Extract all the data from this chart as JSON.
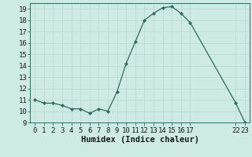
{
  "x": [
    0,
    1,
    2,
    3,
    4,
    5,
    6,
    7,
    8,
    9,
    10,
    11,
    12,
    13,
    14,
    15,
    16,
    17,
    22,
    23
  ],
  "y": [
    11.0,
    10.7,
    10.7,
    10.5,
    10.2,
    10.2,
    9.8,
    10.2,
    10.0,
    11.7,
    14.2,
    16.1,
    18.0,
    18.6,
    19.1,
    19.2,
    18.6,
    17.8,
    10.7,
    9.0
  ],
  "ylim": [
    9,
    19.5
  ],
  "xlim": [
    -0.5,
    23.5
  ],
  "yticks": [
    9,
    10,
    11,
    12,
    13,
    14,
    15,
    16,
    17,
    18,
    19
  ],
  "xticks_pos": [
    0,
    1,
    2,
    3,
    4,
    5,
    6,
    7,
    8,
    9,
    10,
    11,
    12,
    13,
    14,
    15,
    16,
    17,
    22,
    23
  ],
  "xtick_labels": [
    "0",
    "1",
    "2",
    "3",
    "4",
    "5",
    "6",
    "7",
    "8",
    "9",
    "10",
    "11",
    "12",
    "13",
    "14",
    "15",
    "16",
    "17",
    "22",
    "23"
  ],
  "xlabel": "Humidex (Indice chaleur)",
  "line_color": "#2e6b5e",
  "marker_color": "#2e6b5e",
  "bg_color": "#cdeae4",
  "grid_color_major": "#b8d8d0",
  "grid_color_minor": "#c8e4de",
  "spine_color": "#2e6b5e",
  "tick_fontsize": 6.5,
  "label_fontsize": 7.5,
  "marker_size": 2.2,
  "line_width": 0.9
}
